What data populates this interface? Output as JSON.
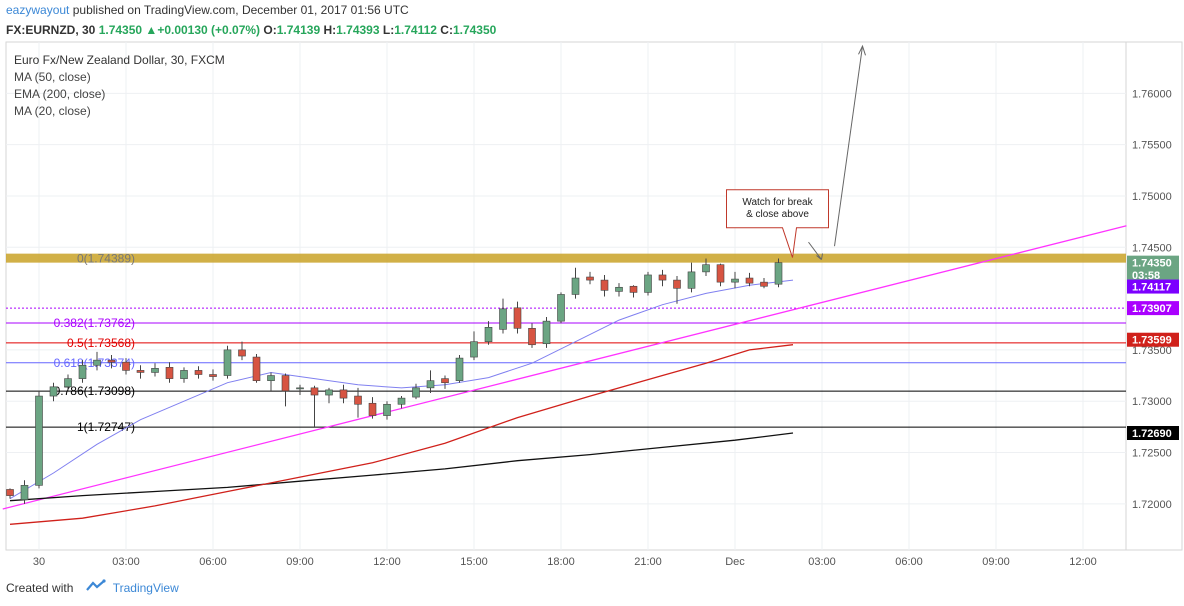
{
  "header": {
    "author": "eazywayout",
    "published": "published on TradingView.com, December 01, 2017 01:56 UTC"
  },
  "symbol_line": {
    "symbol": "FX:EURNZD, 30",
    "last": "1.74350",
    "arrow": "▲",
    "change": "+0.00130 (+0.07%)",
    "o_label": "O:",
    "o": "1.74139",
    "h_label": "H:",
    "h": "1.74393",
    "l_label": "L:",
    "l": "1.74112",
    "c_label": "C:",
    "c": "1.74350"
  },
  "legend": {
    "title": "Euro Fx/New Zealand Dollar, 30, FXCM",
    "ind1": "MA (50, close)",
    "ind2": "EMA (200, close)",
    "ind3": "MA (20, close)"
  },
  "footer": {
    "created": "Created with",
    "brand": "TradingView"
  },
  "chart_data": {
    "type": "candlestick",
    "ylim": [
      1.7155,
      1.765
    ],
    "y_ticks": [
      "1.76000",
      "1.75500",
      "1.75000",
      "1.74500",
      "1.73500",
      "1.73000",
      "1.72500",
      "1.72000"
    ],
    "x_ticks": [
      "30",
      "03:00",
      "06:00",
      "09:00",
      "12:00",
      "15:00",
      "18:00",
      "21:00",
      "Dec",
      "03:00",
      "06:00",
      "09:00",
      "12:00"
    ],
    "colors": {
      "up": "#6ba583",
      "down": "#d75442",
      "ma50": "#d0211b",
      "ema200": "#111111",
      "ma20": "#8080f0",
      "trend": "#ff33ff",
      "resistance": "#c9a227"
    },
    "candles": [
      [
        1.7214,
        1.7215,
        1.7205,
        1.7208
      ],
      [
        1.7204,
        1.7223,
        1.72,
        1.7218
      ],
      [
        1.7218,
        1.731,
        1.7215,
        1.7305
      ],
      [
        1.7305,
        1.7318,
        1.73,
        1.7314
      ],
      [
        1.7314,
        1.7326,
        1.731,
        1.7322
      ],
      [
        1.7322,
        1.734,
        1.7318,
        1.7335
      ],
      [
        1.7335,
        1.7348,
        1.733,
        1.734
      ],
      [
        1.734,
        1.7345,
        1.7332,
        1.7338
      ],
      [
        1.7338,
        1.7342,
        1.7326,
        1.733
      ],
      [
        1.733,
        1.7335,
        1.7322,
        1.7328
      ],
      [
        1.7328,
        1.7337,
        1.7324,
        1.7332
      ],
      [
        1.7333,
        1.7338,
        1.7318,
        1.7322
      ],
      [
        1.7322,
        1.7333,
        1.7318,
        1.733
      ],
      [
        1.733,
        1.7334,
        1.7322,
        1.7326
      ],
      [
        1.7326,
        1.7331,
        1.732,
        1.7324
      ],
      [
        1.7325,
        1.7354,
        1.7322,
        1.735
      ],
      [
        1.735,
        1.7358,
        1.734,
        1.7344
      ],
      [
        1.7343,
        1.7346,
        1.7318,
        1.732
      ],
      [
        1.732,
        1.7328,
        1.731,
        1.7325
      ],
      [
        1.7325,
        1.7327,
        1.7295,
        1.731
      ],
      [
        1.7312,
        1.7316,
        1.7306,
        1.7313
      ],
      [
        1.7313,
        1.7315,
        1.7275,
        1.7306
      ],
      [
        1.7306,
        1.7313,
        1.7298,
        1.7311
      ],
      [
        1.7311,
        1.7316,
        1.7298,
        1.7303
      ],
      [
        1.7305,
        1.7313,
        1.7284,
        1.7297
      ],
      [
        1.7298,
        1.7304,
        1.7283,
        1.7286
      ],
      [
        1.7286,
        1.73,
        1.7282,
        1.7297
      ],
      [
        1.7297,
        1.7305,
        1.7293,
        1.7303
      ],
      [
        1.7304,
        1.7317,
        1.7302,
        1.7313
      ],
      [
        1.7313,
        1.733,
        1.7308,
        1.732
      ],
      [
        1.7322,
        1.7325,
        1.7312,
        1.7318
      ],
      [
        1.732,
        1.7345,
        1.7318,
        1.7342
      ],
      [
        1.7343,
        1.7368,
        1.734,
        1.7358
      ],
      [
        1.7358,
        1.7378,
        1.7355,
        1.7372
      ],
      [
        1.737,
        1.74,
        1.7366,
        1.739
      ],
      [
        1.7391,
        1.7397,
        1.7366,
        1.7371
      ],
      [
        1.7371,
        1.7376,
        1.7352,
        1.7355
      ],
      [
        1.7356,
        1.7382,
        1.7352,
        1.7378
      ],
      [
        1.7378,
        1.7406,
        1.7376,
        1.7404
      ],
      [
        1.7404,
        1.743,
        1.74,
        1.742
      ],
      [
        1.7421,
        1.7426,
        1.7414,
        1.7418
      ],
      [
        1.7418,
        1.7423,
        1.7402,
        1.7408
      ],
      [
        1.7407,
        1.7415,
        1.7402,
        1.7411
      ],
      [
        1.7412,
        1.7413,
        1.7401,
        1.7406
      ],
      [
        1.7406,
        1.7426,
        1.7403,
        1.7423
      ],
      [
        1.7423,
        1.7428,
        1.7412,
        1.7418
      ],
      [
        1.7418,
        1.7422,
        1.7395,
        1.741
      ],
      [
        1.741,
        1.7435,
        1.7406,
        1.7426
      ],
      [
        1.7426,
        1.7439,
        1.7422,
        1.7433
      ],
      [
        1.7433,
        1.7434,
        1.7412,
        1.7416
      ],
      [
        1.7416,
        1.7426,
        1.741,
        1.7419
      ],
      [
        1.742,
        1.7425,
        1.7412,
        1.7415
      ],
      [
        1.7416,
        1.742,
        1.741,
        1.7412
      ],
      [
        1.7414,
        1.7439,
        1.7411,
        1.7435
      ]
    ],
    "ma50": [
      [
        0,
        1.718
      ],
      [
        5,
        1.7186
      ],
      [
        10,
        1.7198
      ],
      [
        15,
        1.7212
      ],
      [
        20,
        1.7226
      ],
      [
        25,
        1.724
      ],
      [
        30,
        1.7259
      ],
      [
        35,
        1.7284
      ],
      [
        40,
        1.7305
      ],
      [
        45,
        1.7325
      ],
      [
        48,
        1.7337
      ],
      [
        51,
        1.735
      ],
      [
        54,
        1.7355
      ]
    ],
    "ema200": [
      [
        0,
        1.7203
      ],
      [
        5,
        1.7208
      ],
      [
        10,
        1.7212
      ],
      [
        15,
        1.7216
      ],
      [
        20,
        1.7222
      ],
      [
        25,
        1.7228
      ],
      [
        30,
        1.7234
      ],
      [
        35,
        1.7242
      ],
      [
        40,
        1.7248
      ],
      [
        45,
        1.7255
      ],
      [
        50,
        1.7262
      ],
      [
        54,
        1.7269
      ]
    ],
    "ma20": [
      [
        0,
        1.7205
      ],
      [
        3,
        1.723
      ],
      [
        6,
        1.7258
      ],
      [
        9,
        1.7282
      ],
      [
        12,
        1.73
      ],
      [
        15,
        1.7318
      ],
      [
        18,
        1.7328
      ],
      [
        21,
        1.7322
      ],
      [
        24,
        1.7316
      ],
      [
        27,
        1.7313
      ],
      [
        30,
        1.7316
      ],
      [
        33,
        1.7323
      ],
      [
        36,
        1.7337
      ],
      [
        39,
        1.7358
      ],
      [
        42,
        1.7379
      ],
      [
        45,
        1.7394
      ],
      [
        48,
        1.7405
      ],
      [
        51,
        1.7413
      ],
      [
        54,
        1.7418
      ]
    ],
    "trendline": [
      [
        -0.5,
        1.7195
      ],
      [
        77,
        1.7471
      ]
    ],
    "resistance": 1.74389,
    "current_line": 1.73907,
    "fib": [
      {
        "label": "0(1.74389)",
        "price": 1.74389,
        "color": "#777777"
      },
      {
        "label": "0.382(1.73762)",
        "price": 1.73762,
        "color": "#aa00ff"
      },
      {
        "label": "0.5(1.73568)",
        "price": 1.73568,
        "color": "#e00000"
      },
      {
        "label": "0.618(1.73374)",
        "price": 1.73374,
        "color": "#6666ff"
      },
      {
        "label": "0.786(1.73098)",
        "price": 1.73098,
        "color": "#000000"
      },
      {
        "label": "1(1.72747)",
        "price": 1.72747,
        "color": "#000000"
      }
    ],
    "price_labels": [
      {
        "text": "1.74350",
        "price": 1.7435,
        "bg": "#6ba583"
      },
      {
        "text": "03:58",
        "price": 1.7423,
        "bg": "#6ba583"
      },
      {
        "text": "1.74117",
        "price": 1.74117,
        "bg": "#7c00ff"
      },
      {
        "text": "1.73907",
        "price": 1.73907,
        "bg": "#aa00ff"
      },
      {
        "text": "1.73599",
        "price": 1.73599,
        "bg": "#d0211b"
      },
      {
        "text": "1.72690",
        "price": 1.7269,
        "bg": "#000000"
      }
    ],
    "annotation": {
      "line1": "Watch for break",
      "line2": "& close above"
    }
  }
}
